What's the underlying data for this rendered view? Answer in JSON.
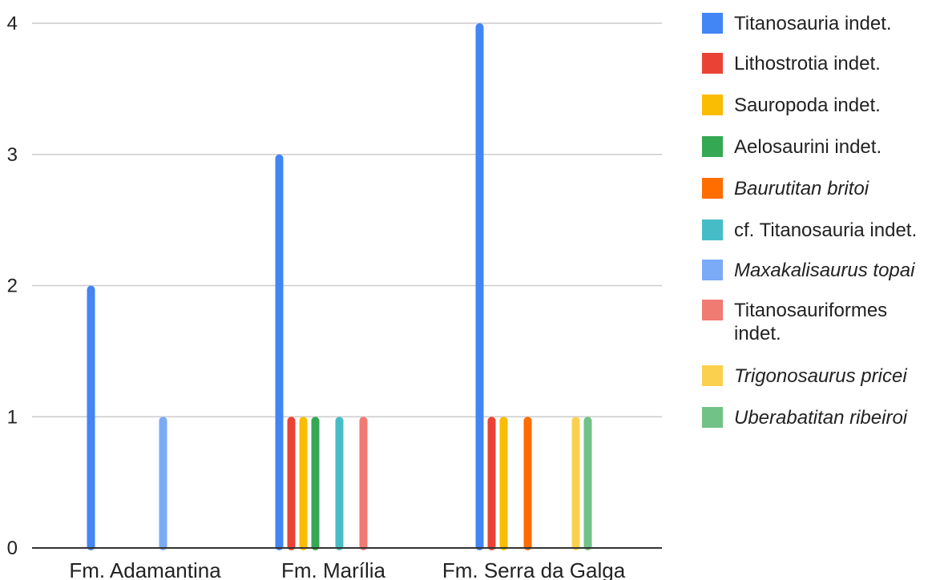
{
  "chart_data": {
    "type": "bar",
    "categories": [
      "Fm. Adamantina",
      "Fm. Marília",
      "Fm. Serra da Galga"
    ],
    "ylim": [
      0,
      4
    ],
    "yticks": [
      "0",
      "1",
      "2",
      "3",
      "4"
    ],
    "grid": true,
    "legend_position": "right",
    "series": [
      {
        "name": "Titanosauria indet.",
        "name_lines": [
          "Titanosauria indet."
        ],
        "italic": false,
        "color": "#4285F4",
        "values": [
          2,
          3,
          4
        ]
      },
      {
        "name": "Lithostrotia indet.",
        "name_lines": [
          "Lithostrotia indet."
        ],
        "italic": false,
        "color": "#EA4335",
        "values": [
          0,
          1,
          1
        ]
      },
      {
        "name": "Sauropoda indet.",
        "name_lines": [
          "Sauropoda indet."
        ],
        "italic": false,
        "color": "#FBBC04",
        "values": [
          0,
          1,
          1
        ]
      },
      {
        "name": "Aelosaurini indet.",
        "name_lines": [
          "Aelosaurini indet."
        ],
        "italic": false,
        "color": "#34A853",
        "values": [
          0,
          1,
          0
        ]
      },
      {
        "name": "Baurutitan britoi",
        "name_lines": [
          "Baurutitan britoi"
        ],
        "italic": true,
        "color": "#FF6D01",
        "values": [
          0,
          0,
          1
        ]
      },
      {
        "name": "cf. Titanosauria indet.",
        "name_lines": [
          "cf. Titanosauria indet."
        ],
        "italic": false,
        "color": "#46BDC6",
        "values": [
          0,
          1,
          0
        ]
      },
      {
        "name": "Maxakalisaurus topai",
        "name_lines": [
          "Maxakalisaurus topai"
        ],
        "italic": true,
        "color": "#7BAAF7",
        "values": [
          1,
          0,
          0
        ]
      },
      {
        "name": "Titanosauriformes indet.",
        "name_lines": [
          "Titanosauriformes",
          "indet."
        ],
        "italic": false,
        "color": "#F07B72",
        "values": [
          0,
          1,
          0
        ]
      },
      {
        "name": "Trigonosaurus pricei",
        "name_lines": [
          "Trigonosaurus pricei"
        ],
        "italic": true,
        "color": "#FCD04F",
        "values": [
          0,
          0,
          1
        ]
      },
      {
        "name": "Uberabatitan ribeiroi",
        "name_lines": [
          "Uberabatitan ribeiroi"
        ],
        "italic": true,
        "color": "#71C287",
        "values": [
          0,
          0,
          1
        ]
      }
    ]
  }
}
